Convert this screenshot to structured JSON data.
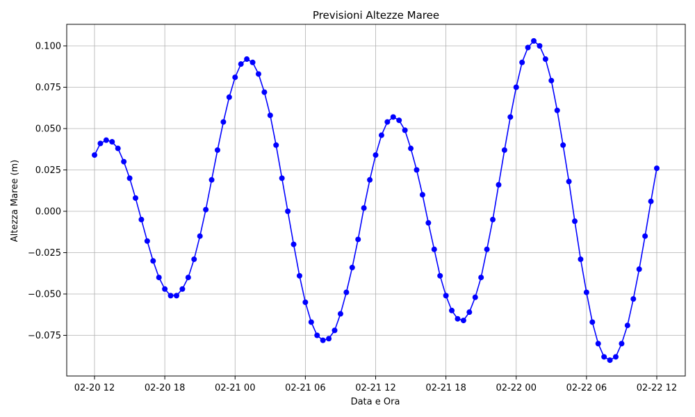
{
  "chart_data": {
    "type": "line",
    "title": "Previsioni Altezze Maree",
    "xlabel": "Data e Ora",
    "ylabel": "Altezza Maree (m)",
    "x_start": "02-20 12",
    "x_step_hours": 0.5,
    "x_ticks": [
      "02-20 12",
      "02-20 18",
      "02-21 00",
      "02-21 06",
      "02-21 12",
      "02-21 18",
      "02-22 00",
      "02-22 06",
      "02-22 12"
    ],
    "y_ticks": [
      "0.100",
      "0.075",
      "0.050",
      "0.025",
      "0.000",
      "−0.025",
      "−0.050",
      "−0.075"
    ],
    "ylim": [
      -0.1,
      0.113
    ],
    "grid": true,
    "line_color": "#0000ff",
    "marker_color": "#0000ff",
    "series": [
      {
        "values": [
          0.034,
          0.041,
          0.043,
          0.042,
          0.038,
          0.03,
          0.02,
          0.008,
          -0.005,
          -0.018,
          -0.03,
          -0.04,
          -0.047,
          -0.051,
          -0.051,
          -0.047,
          -0.04,
          -0.029,
          -0.015,
          0.001,
          0.019,
          0.037,
          0.054,
          0.069,
          0.081,
          0.089,
          0.092,
          0.09,
          0.083,
          0.072,
          0.058,
          0.04,
          0.02,
          0.0,
          -0.02,
          -0.039,
          -0.055,
          -0.067,
          -0.075,
          -0.078,
          -0.077,
          -0.072,
          -0.062,
          -0.049,
          -0.034,
          -0.017,
          0.002,
          0.019,
          0.034,
          0.046,
          0.054,
          0.057,
          0.055,
          0.049,
          0.038,
          0.025,
          0.01,
          -0.007,
          -0.023,
          -0.039,
          -0.051,
          -0.06,
          -0.065,
          -0.066,
          -0.061,
          -0.052,
          -0.04,
          -0.023,
          -0.005,
          0.016,
          0.037,
          0.057,
          0.075,
          0.09,
          0.099,
          0.103,
          0.1,
          0.092,
          0.079,
          0.061,
          0.04,
          0.018,
          -0.006,
          -0.029,
          -0.049,
          -0.067,
          -0.08,
          -0.088,
          -0.09,
          -0.088,
          -0.08,
          -0.069,
          -0.053,
          -0.035,
          -0.015,
          0.006,
          0.026
        ]
      }
    ]
  }
}
